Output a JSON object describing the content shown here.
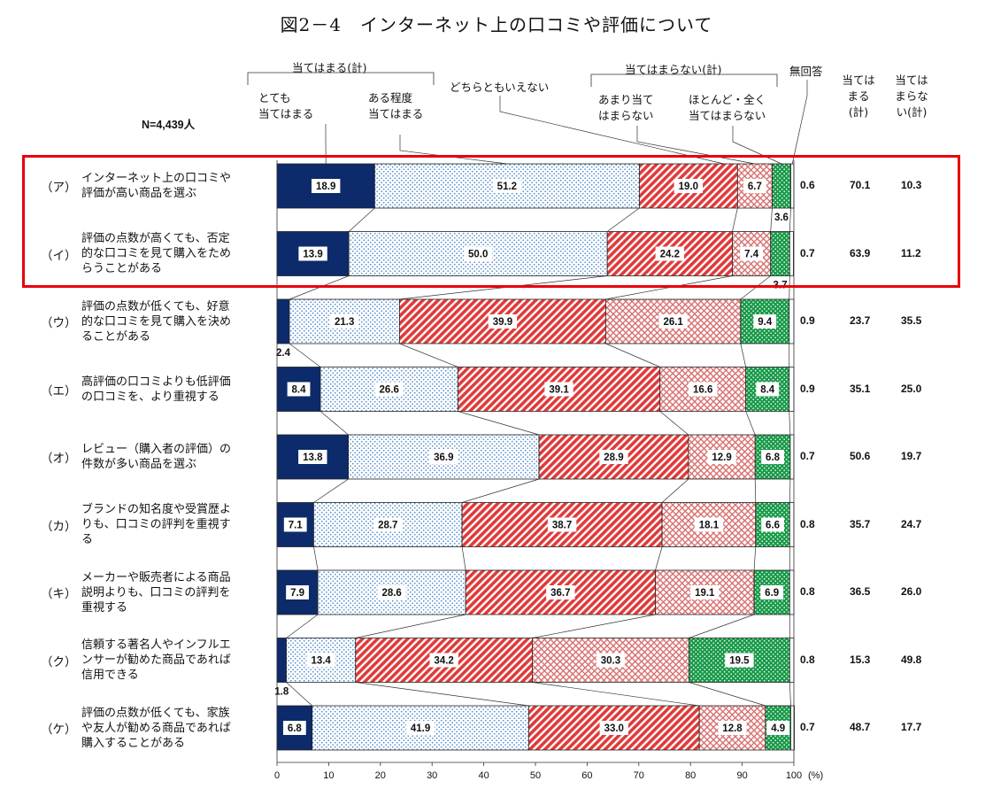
{
  "title": "図2－4　インターネット上の口コミや評価について",
  "n_label": "N=4,439人",
  "headers": {
    "agree_group": "当てはまる(計)",
    "very_agree": [
      "とても",
      "当てはまる"
    ],
    "somewhat_agree": [
      "ある程度",
      "当てはまる"
    ],
    "neutral": "どちらともいえない",
    "disagree_group": "当てはまらない(計)",
    "somewhat_disagree": [
      "あまり当て",
      "はまらない"
    ],
    "not_at_all": [
      "ほとんど・全く",
      "当てはまらない"
    ],
    "no_response": "無回答",
    "agree_total": [
      "当ては",
      "まる",
      "(計)"
    ],
    "disagree_total": [
      "当ては",
      "まらな",
      "い(計)"
    ]
  },
  "colors": {
    "very_agree": "#0d2a6b",
    "somewhat_agree": "#4a86c8",
    "neutral": "#e03a3a",
    "somewhat_disagree": "#d87070",
    "not_at_all": "#1a9a4a",
    "highlight": "#e8000b"
  },
  "rows": [
    {
      "id": "（ア）",
      "lines": [
        "インターネット上の口コミや",
        "評価が高い商品を選ぶ"
      ],
      "nr": "0.6",
      "agree": "70.1",
      "disagree": "10.3"
    },
    {
      "id": "（イ）",
      "lines": [
        "評価の点数が高くても、否定",
        "的な口コミを見て購入をため",
        "らうことがある"
      ],
      "nr": "0.7",
      "agree": "63.9",
      "disagree": "11.2"
    },
    {
      "id": "（ウ）",
      "lines": [
        "評価の点数が低くても、好意",
        "的な口コミを見て購入を決め",
        "ることがある"
      ],
      "nr": "0.9",
      "agree": "23.7",
      "disagree": "35.5"
    },
    {
      "id": "（エ）",
      "lines": [
        "高評価の口コミよりも低評価",
        "の口コミを、より重視する"
      ],
      "nr": "0.9",
      "agree": "35.1",
      "disagree": "25.0"
    },
    {
      "id": "（オ）",
      "lines": [
        "レビュー（購入者の評価）の",
        "件数が多い商品を選ぶ"
      ],
      "nr": "0.7",
      "agree": "50.6",
      "disagree": "19.7"
    },
    {
      "id": "（カ）",
      "lines": [
        "ブランドの知名度や受賞歴よ",
        "りも、口コミの評判を重視す",
        "る"
      ],
      "nr": "0.8",
      "agree": "35.7",
      "disagree": "24.7"
    },
    {
      "id": "（キ）",
      "lines": [
        "メーカーや販売者による商品",
        "説明よりも、口コミの評判を",
        "重視する"
      ],
      "nr": "0.8",
      "agree": "36.5",
      "disagree": "26.0"
    },
    {
      "id": "（ク）",
      "lines": [
        "信頼する著名人やインフルエ",
        "ンサーが勧めた商品であれば",
        "信用できる"
      ],
      "nr": "0.8",
      "agree": "15.3",
      "disagree": "49.8"
    },
    {
      "id": "（ケ）",
      "lines": [
        "評価の点数が低くても、家族",
        "や友人が勧める商品であれば",
        "購入することがある"
      ],
      "nr": "0.7",
      "agree": "48.7",
      "disagree": "17.7"
    }
  ],
  "chart_data": {
    "type": "bar",
    "stacked": true,
    "orientation": "horizontal",
    "title": "図2－4　インターネット上の口コミや評価について",
    "xlabel": "(%)",
    "xlim": [
      0,
      100
    ],
    "xticks": [
      0,
      10,
      20,
      30,
      40,
      50,
      60,
      70,
      80,
      90,
      100
    ],
    "categories": [
      "（ア）",
      "（イ）",
      "（ウ）",
      "（エ）",
      "（オ）",
      "（カ）",
      "（キ）",
      "（ク）",
      "（ケ）"
    ],
    "series": [
      {
        "name": "とても当てはまる",
        "values": [
          18.9,
          13.9,
          2.4,
          8.4,
          13.8,
          7.1,
          7.9,
          1.8,
          6.8
        ]
      },
      {
        "name": "ある程度当てはまる",
        "values": [
          51.2,
          50.0,
          21.3,
          26.6,
          36.9,
          28.7,
          28.6,
          13.4,
          41.9
        ]
      },
      {
        "name": "どちらともいえない",
        "values": [
          19.0,
          24.2,
          39.9,
          39.1,
          28.9,
          38.7,
          36.7,
          34.2,
          33.0
        ]
      },
      {
        "name": "あまり当てはまらない",
        "values": [
          6.7,
          7.4,
          26.1,
          16.6,
          12.9,
          18.1,
          19.1,
          30.3,
          12.8
        ]
      },
      {
        "name": "ほとんど・全く当てはまらない",
        "values": [
          3.6,
          3.7,
          9.4,
          8.4,
          6.8,
          6.6,
          6.9,
          19.5,
          4.9
        ]
      },
      {
        "name": "無回答",
        "values": [
          0.6,
          0.7,
          0.9,
          0.9,
          0.7,
          0.8,
          0.8,
          0.8,
          0.7
        ]
      }
    ],
    "grid": false
  }
}
